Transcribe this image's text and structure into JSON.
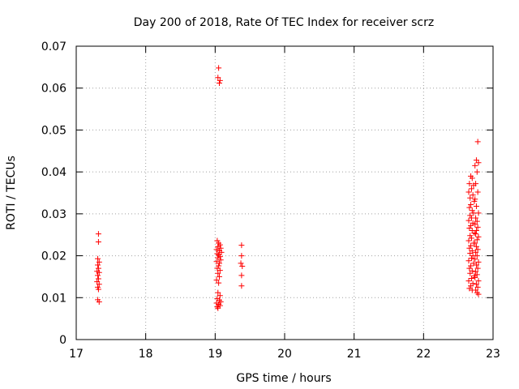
{
  "chart_data": {
    "type": "scatter",
    "title": "Day 200 of 2018, Rate Of TEC Index for receiver scrz",
    "xlabel": "GPS time / hours",
    "ylabel": "ROTI / TECUs",
    "xlim": [
      17,
      23
    ],
    "ylim": [
      0,
      0.07
    ],
    "xticks": [
      17,
      18,
      19,
      20,
      21,
      22,
      23
    ],
    "yticks": [
      0,
      0.01,
      0.02,
      0.03,
      0.04,
      0.05,
      0.06,
      0.07
    ],
    "xtick_labels": [
      "17",
      "18",
      "19",
      "20",
      "21",
      "22",
      "23"
    ],
    "ytick_labels": [
      "0",
      "0.01",
      "0.02",
      "0.03",
      "0.04",
      "0.05",
      "0.06",
      "0.07"
    ],
    "grid": true,
    "marker": "plus",
    "color": "#ff0000",
    "series": [
      {
        "points": [
          [
            17.32,
            0.0252
          ],
          [
            17.32,
            0.0233
          ],
          [
            17.31,
            0.0193
          ],
          [
            17.33,
            0.0185
          ],
          [
            17.31,
            0.0178
          ],
          [
            17.32,
            0.017
          ],
          [
            17.3,
            0.0163
          ],
          [
            17.33,
            0.016
          ],
          [
            17.31,
            0.0153
          ],
          [
            17.32,
            0.0145
          ],
          [
            17.3,
            0.0138
          ],
          [
            17.33,
            0.0132
          ],
          [
            17.31,
            0.0125
          ],
          [
            17.32,
            0.012
          ],
          [
            17.31,
            0.0095
          ],
          [
            17.33,
            0.009
          ],
          [
            19.05,
            0.0648
          ],
          [
            19.04,
            0.0625
          ],
          [
            19.07,
            0.0618
          ],
          [
            19.06,
            0.0612
          ],
          [
            19.03,
            0.0236
          ],
          [
            19.05,
            0.023
          ],
          [
            19.07,
            0.0226
          ],
          [
            19.04,
            0.0222
          ],
          [
            19.08,
            0.0218
          ],
          [
            19.02,
            0.0215
          ],
          [
            19.06,
            0.0212
          ],
          [
            19.09,
            0.0208
          ],
          [
            19.03,
            0.0205
          ],
          [
            19.05,
            0.0202
          ],
          [
            19.07,
            0.0198
          ],
          [
            19.04,
            0.0195
          ],
          [
            19.08,
            0.019
          ],
          [
            19.02,
            0.0186
          ],
          [
            19.06,
            0.0182
          ],
          [
            19.05,
            0.0176
          ],
          [
            19.03,
            0.017
          ],
          [
            19.07,
            0.0165
          ],
          [
            19.04,
            0.0158
          ],
          [
            19.06,
            0.015
          ],
          [
            19.02,
            0.0142
          ],
          [
            19.05,
            0.0135
          ],
          [
            19.04,
            0.0112
          ],
          [
            19.07,
            0.0105
          ],
          [
            19.03,
            0.0098
          ],
          [
            19.06,
            0.0094
          ],
          [
            19.08,
            0.009
          ],
          [
            19.02,
            0.0087
          ],
          [
            19.05,
            0.0084
          ],
          [
            19.07,
            0.0081
          ],
          [
            19.03,
            0.0078
          ],
          [
            19.04,
            0.0075
          ],
          [
            19.38,
            0.0225
          ],
          [
            19.38,
            0.02
          ],
          [
            19.37,
            0.0182
          ],
          [
            19.39,
            0.0175
          ],
          [
            19.38,
            0.0153
          ],
          [
            19.38,
            0.0128
          ],
          [
            22.68,
            0.039
          ],
          [
            22.7,
            0.0385
          ],
          [
            22.66,
            0.0372
          ],
          [
            22.72,
            0.0368
          ],
          [
            22.69,
            0.036
          ],
          [
            22.65,
            0.0352
          ],
          [
            22.71,
            0.0345
          ],
          [
            22.67,
            0.0338
          ],
          [
            22.73,
            0.033
          ],
          [
            22.68,
            0.0322
          ],
          [
            22.66,
            0.0315
          ],
          [
            22.7,
            0.0308
          ],
          [
            22.72,
            0.0302
          ],
          [
            22.67,
            0.0296
          ],
          [
            22.69,
            0.029
          ],
          [
            22.65,
            0.0284
          ],
          [
            22.71,
            0.0278
          ],
          [
            22.68,
            0.0272
          ],
          [
            22.66,
            0.0266
          ],
          [
            22.7,
            0.026
          ],
          [
            22.73,
            0.0254
          ],
          [
            22.67,
            0.0248
          ],
          [
            22.69,
            0.0242
          ],
          [
            22.65,
            0.0236
          ],
          [
            22.72,
            0.023
          ],
          [
            22.68,
            0.0224
          ],
          [
            22.66,
            0.0218
          ],
          [
            22.7,
            0.0212
          ],
          [
            22.67,
            0.0206
          ],
          [
            22.71,
            0.02
          ],
          [
            22.69,
            0.0194
          ],
          [
            22.65,
            0.0188
          ],
          [
            22.72,
            0.0182
          ],
          [
            22.68,
            0.0176
          ],
          [
            22.66,
            0.017
          ],
          [
            22.7,
            0.0164
          ],
          [
            22.67,
            0.0158
          ],
          [
            22.73,
            0.0152
          ],
          [
            22.69,
            0.0146
          ],
          [
            22.65,
            0.014
          ],
          [
            22.71,
            0.0134
          ],
          [
            22.68,
            0.0128
          ],
          [
            22.66,
            0.0122
          ],
          [
            22.7,
            0.0118
          ],
          [
            22.78,
            0.0472
          ],
          [
            22.76,
            0.0428
          ],
          [
            22.79,
            0.0422
          ],
          [
            22.74,
            0.0415
          ],
          [
            22.77,
            0.04
          ],
          [
            22.75,
            0.0372
          ],
          [
            22.78,
            0.0352
          ],
          [
            22.74,
            0.0335
          ],
          [
            22.76,
            0.0318
          ],
          [
            22.79,
            0.0302
          ],
          [
            22.75,
            0.029
          ],
          [
            22.77,
            0.0282
          ],
          [
            22.74,
            0.0275
          ],
          [
            22.78,
            0.0268
          ],
          [
            22.76,
            0.026
          ],
          [
            22.75,
            0.0252
          ],
          [
            22.79,
            0.0245
          ],
          [
            22.77,
            0.0238
          ],
          [
            22.74,
            0.023
          ],
          [
            22.76,
            0.0222
          ],
          [
            22.78,
            0.0215
          ],
          [
            22.75,
            0.0208
          ],
          [
            22.77,
            0.02
          ],
          [
            22.74,
            0.0192
          ],
          [
            22.79,
            0.0185
          ],
          [
            22.76,
            0.0178
          ],
          [
            22.78,
            0.017
          ],
          [
            22.75,
            0.0162
          ],
          [
            22.77,
            0.0155
          ],
          [
            22.74,
            0.0148
          ],
          [
            22.79,
            0.014
          ],
          [
            22.76,
            0.0132
          ],
          [
            22.78,
            0.0125
          ],
          [
            22.75,
            0.0118
          ],
          [
            22.77,
            0.0112
          ],
          [
            22.79,
            0.0108
          ]
        ]
      }
    ]
  }
}
